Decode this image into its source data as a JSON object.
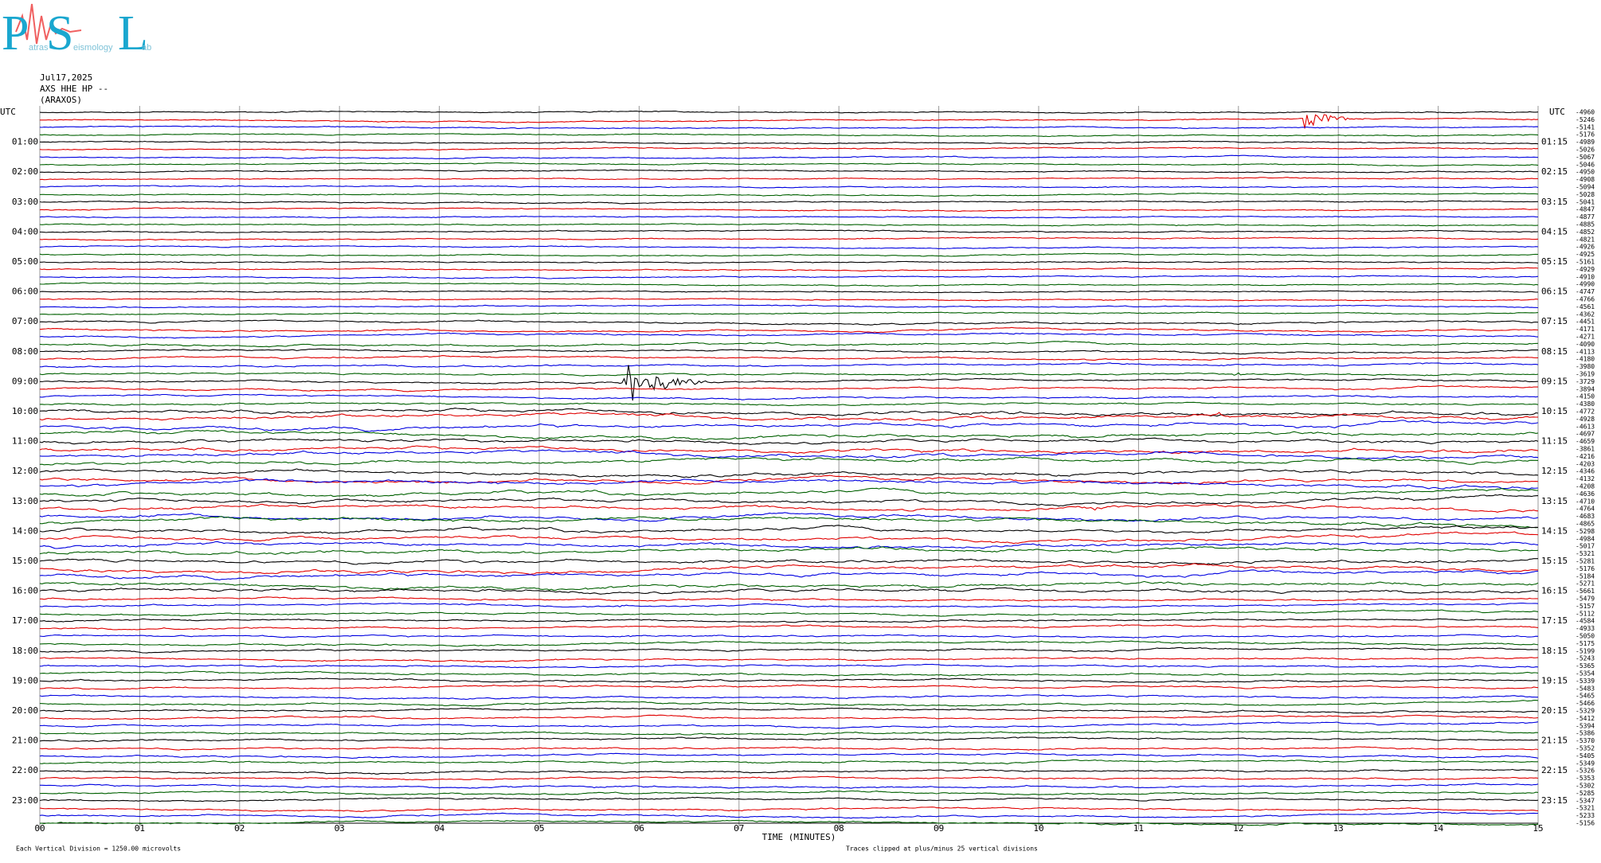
{
  "logo": {
    "letters": [
      "P",
      "S",
      "L"
    ],
    "words": [
      "atras",
      "eismology",
      "ab"
    ]
  },
  "header": {
    "date": "Jul17,2025",
    "station": "AXS HHE HP --",
    "location": "(ARAXOS)"
  },
  "left_labels": [
    "UTC",
    "01:00",
    "02:00",
    "03:00",
    "04:00",
    "05:00",
    "06:00",
    "07:00",
    "08:00",
    "09:00",
    "10:00",
    "11:00",
    "12:00",
    "13:00",
    "14:00",
    "15:00",
    "16:00",
    "17:00",
    "18:00",
    "19:00",
    "20:00",
    "21:00",
    "22:00",
    "23:00"
  ],
  "right_labels": [
    "UTC",
    "01:15",
    "02:15",
    "03:15",
    "04:15",
    "05:15",
    "06:15",
    "07:15",
    "08:15",
    "09:15",
    "10:15",
    "11:15",
    "12:15",
    "13:15",
    "14:15",
    "15:15",
    "16:15",
    "17:15",
    "18:15",
    "19:15",
    "20:15",
    "21:15",
    "22:15",
    "23:15"
  ],
  "offsets": [
    "-4960",
    "-5246",
    "-5141",
    "-5176",
    "-4989",
    "-5026",
    "-5067",
    "-5046",
    "-4950",
    "-4908",
    "-5094",
    "-5028",
    "-5041",
    "-4847",
    "-4877",
    "-4885",
    "-4852",
    "-4821",
    "-4926",
    "-4925",
    "-5161",
    "-4929",
    "-4910",
    "-4990",
    "-4747",
    "-4766",
    "-4561",
    "-4362",
    "-4451",
    "-4171",
    "-4271",
    "-4090",
    "-4113",
    "-4180",
    "-3980",
    "-3619",
    "-3729",
    "-3894",
    "-4150",
    "-4380",
    "-4772",
    "-4928",
    "-4613",
    "-4697",
    "-4659",
    "-3861",
    "-4216",
    "-4203",
    "-4346",
    "-4132",
    "-4208",
    "-4636",
    "-4710",
    "-4764",
    "-4683",
    "-4865",
    "-5298",
    "-4984",
    "-5017",
    "-5321",
    "-5281",
    "-5176",
    "-5184",
    "-5271",
    "-5661",
    "-5479",
    "-5157",
    "-5112",
    "-4584",
    "-4933",
    "-5050",
    "-5175",
    "-5199",
    "-5243",
    "-5365",
    "-5354",
    "-5339",
    "-5483",
    "-5465",
    "-5466",
    "-5329",
    "-5412",
    "-5394",
    "-5386",
    "-5370",
    "-5352",
    "-5405",
    "-5349",
    "-5326",
    "-5353",
    "-5302",
    "-5285",
    "-5347",
    "-5321",
    "-5233",
    "-5156"
  ],
  "x_labels": [
    "00",
    "01",
    "02",
    "03",
    "04",
    "05",
    "06",
    "07",
    "08",
    "09",
    "10",
    "11",
    "12",
    "13",
    "14",
    "15"
  ],
  "x_title": "TIME (MINUTES)",
  "footer": {
    "scale": "Each Vertical Division = 1250.00 microvolts",
    "clip": "Traces clipped at plus/minus 25 vertical divisions"
  }
}
